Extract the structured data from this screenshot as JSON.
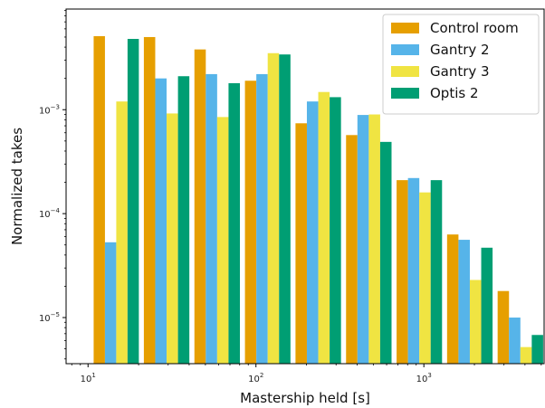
{
  "chart_data": {
    "type": "bar",
    "x_scale": "log",
    "y_scale": "log",
    "xlabel": "Mastership held [s]",
    "ylabel": "Normalized takes",
    "xlim": [
      7.4,
      5200
    ],
    "ylim": [
      3.6e-06,
      0.0093
    ],
    "x_ticks": [
      {
        "value": 10,
        "base": "10",
        "exp": "1"
      },
      {
        "value": 100,
        "base": "10",
        "exp": "2"
      },
      {
        "value": 1000,
        "base": "10",
        "exp": "3"
      }
    ],
    "y_ticks": [
      {
        "value": 1e-05,
        "base": "10",
        "exp": "−5"
      },
      {
        "value": 0.0001,
        "base": "10",
        "exp": "−4"
      },
      {
        "value": 0.001,
        "base": "10",
        "exp": "−3"
      }
    ],
    "bin_edges": [
      10.8,
      21.5,
      43,
      86,
      172,
      344,
      688,
      1375,
      2750,
      5500
    ],
    "bar_base": 3.6e-06,
    "legend_position": "top-right",
    "series": [
      {
        "name": "Control room",
        "color": "#E69F00",
        "values": [
          0.0051,
          0.005,
          0.0038,
          0.0019,
          0.00074,
          0.00057,
          0.00021,
          6.3e-05,
          1.8e-05
        ]
      },
      {
        "name": "Gantry 2",
        "color": "#56B4E9",
        "values": [
          5.3e-05,
          0.002,
          0.0022,
          0.0022,
          0.0012,
          0.00089,
          0.00022,
          5.6e-05,
          1e-05
        ]
      },
      {
        "name": "Gantry 3",
        "color": "#F0E442",
        "values": [
          0.0012,
          0.00092,
          0.00085,
          0.0035,
          0.00148,
          0.0009,
          0.00016,
          2.3e-05,
          5.2e-06
        ]
      },
      {
        "name": "Optis 2",
        "color": "#009E73",
        "values": [
          0.0048,
          0.0021,
          0.0018,
          0.0034,
          0.00132,
          0.00049,
          0.00021,
          4.7e-05,
          6.8e-06
        ]
      }
    ]
  }
}
